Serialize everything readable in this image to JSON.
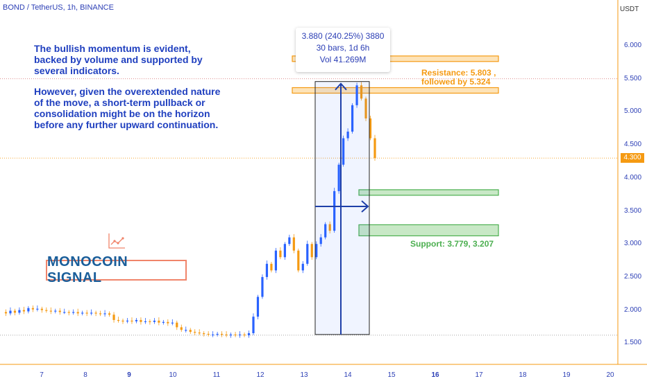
{
  "symbol_title": "BOND / TetherUS, 1h, BINANCE",
  "currency": "USDT",
  "last_price": "4.300",
  "annotation": {
    "paragraph1": "The bullish momentum is evident, backed by volume and supported by several indicators.",
    "paragraph2": "However, given the overextended nature of the move, a short-term pullback or consolidation might be on the horizon before any further upward continuation."
  },
  "measure": {
    "line1": "3.880 (240.25%) 3880",
    "line2": "30 bars, 1d 6h",
    "line3": "Vol 41.269M"
  },
  "resistance_label": {
    "line1": "Resistance: 5.803 ,",
    "line2": "followed by 5.324"
  },
  "support_label": "Support: 3.779, 3.207",
  "signal_badge": "MONOCOIN SIGNAL",
  "icons": [
    "chart-line-icon"
  ],
  "colors": {
    "accent_orange": "#f59a12",
    "support_green": "#4caf50",
    "measure_blue": "#1e3fa8",
    "bull": "#2962ff",
    "bear": "#f59a12",
    "signal_text": "#1a5e9a",
    "signal_border": "#f0846a"
  },
  "chart_data": {
    "type": "candlestick",
    "title": "BOND / TetherUS, 1h, BINANCE",
    "ylabel": "USDT",
    "ylim": [
      1.2,
      6.4
    ],
    "y_ticks": [
      "6.000",
      "5.500",
      "5.000",
      "4.500",
      "4.000",
      "3.500",
      "3.000",
      "2.500",
      "2.000",
      "1.500"
    ],
    "x_ticks": [
      "7",
      "8",
      "9",
      "10",
      "11",
      "12",
      "13",
      "14",
      "15",
      "16",
      "17",
      "18",
      "19",
      "20"
    ],
    "resistance_levels": [
      5.803,
      5.324
    ],
    "support_levels": [
      3.779,
      3.207
    ],
    "current_price": 4.3,
    "measure": {
      "from": 1.62,
      "to": 5.5,
      "change": "3.880 (240.25%) 3880",
      "bars": 30
    },
    "series": [
      {
        "values": [
          1.97,
          1.95,
          1.99,
          1.96,
          2.0,
          1.98,
          2.03,
          2.01,
          2.02,
          2.0,
          1.99,
          1.98,
          1.99,
          1.97,
          1.97,
          1.96,
          1.97,
          1.95,
          1.96,
          1.95,
          1.96,
          1.95,
          1.94,
          1.95,
          1.93,
          1.85,
          1.84,
          1.83,
          1.84,
          1.83,
          1.85,
          1.82,
          1.83,
          1.82,
          1.84,
          1.81,
          1.82,
          1.8,
          1.81,
          1.74,
          1.7,
          1.7,
          1.67,
          1.66,
          1.65,
          1.64,
          1.63,
          1.63,
          1.64,
          1.63,
          1.62,
          1.63,
          1.62,
          1.63,
          1.62,
          1.65,
          1.9,
          2.2,
          2.5,
          2.7,
          2.6,
          2.9,
          2.8,
          3.0,
          3.1,
          2.9,
          2.6,
          2.7,
          3.0,
          2.8,
          3.0,
          3.1,
          3.3,
          3.2,
          3.8,
          4.2,
          4.6,
          4.7,
          5.1,
          5.4,
          5.2,
          4.9,
          4.6,
          4.3
        ]
      }
    ]
  }
}
